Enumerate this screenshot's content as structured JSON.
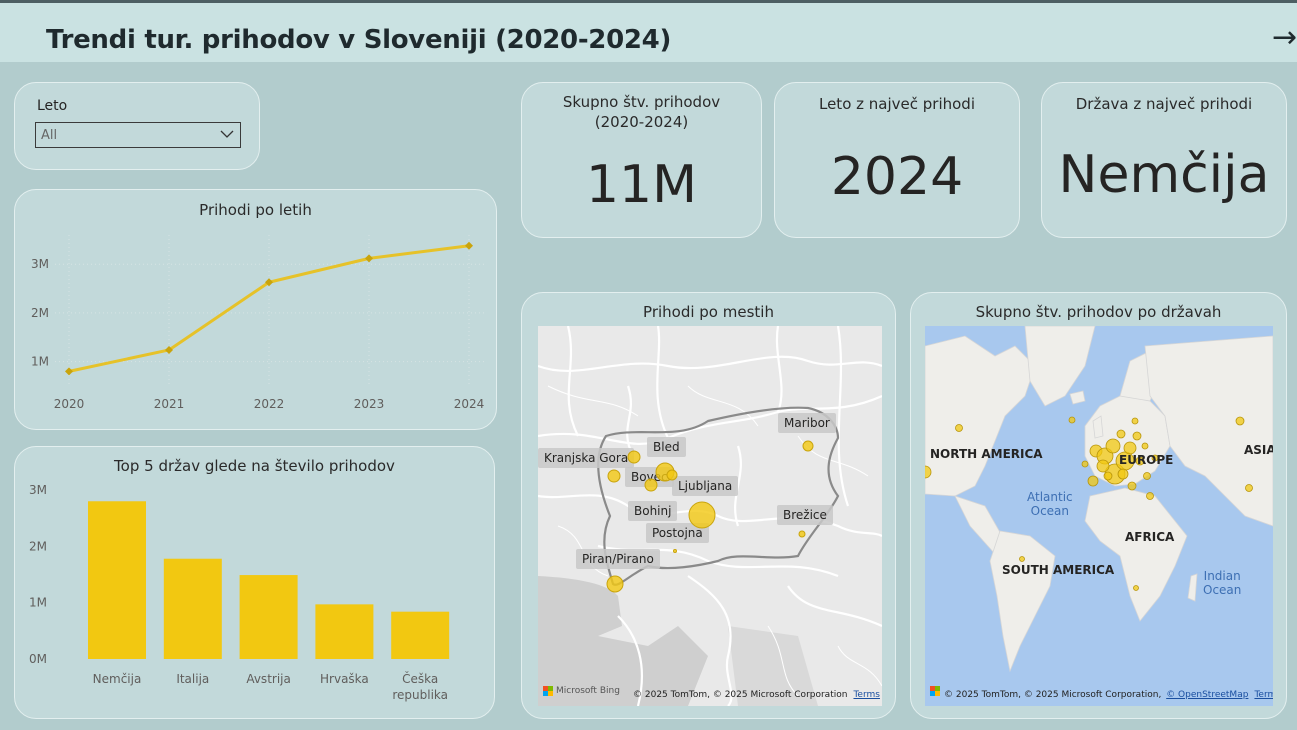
{
  "header": {
    "title": "Trendi tur. prihodov v Sloveniji (2020-2024)",
    "nav_icon": "arrow-right-icon"
  },
  "slicer": {
    "label": "Leto",
    "value": "All"
  },
  "kpis": [
    {
      "title": "Skupno štv. prihodov\n(2020-2024)",
      "value": "11M"
    },
    {
      "title": "Leto z največ prihodi",
      "value": "2024"
    },
    {
      "title": "Država z največ prihodi",
      "value": "Nemčija"
    }
  ],
  "line_card": {
    "title": "Prihodi po letih",
    "y_ticks": [
      "1M",
      "2M",
      "3M"
    ]
  },
  "bar_card": {
    "title": "Top 5 držav glede na število prihodov",
    "y_ticks": [
      "0M",
      "1M",
      "2M",
      "3M"
    ],
    "last_label_line2": "republika"
  },
  "chart_data": [
    {
      "type": "line",
      "title": "Prihodi po letih",
      "categories": [
        "2020",
        "2021",
        "2022",
        "2023",
        "2024"
      ],
      "values": [
        0.8,
        1.24,
        2.63,
        3.12,
        3.38
      ],
      "unit": "M",
      "ylim": [
        0.5,
        3.6
      ],
      "grid": true,
      "color": "#e6c229"
    },
    {
      "type": "bar",
      "title": "Top 5 držav glede na število prihodov",
      "categories": [
        "Nemčija",
        "Italija",
        "Avstrija",
        "Hrvaška",
        "Češka republika"
      ],
      "values": [
        2.8,
        1.78,
        1.49,
        0.97,
        0.84
      ],
      "unit": "M",
      "ylim": [
        0,
        3
      ],
      "color": "#f2c811"
    }
  ],
  "city_map": {
    "title": "Prihodi po mestih",
    "cities": [
      "Maribor",
      "Bled",
      "Kranjska Gora",
      "Bovec",
      "Ljubljana",
      "Bohinj",
      "Brežice",
      "Postojna",
      "Piran/Pirano"
    ],
    "logo": "Microsoft Bing",
    "credits": "© 2025 TomTom, © 2025 Microsoft Corporation",
    "terms": "Terms"
  },
  "world_map": {
    "title": "Skupno štv. prihodov po državah",
    "regions": [
      "NORTH AMERICA",
      "EUROPE",
      "ASIA",
      "AFRICA",
      "SOUTH AMERICA"
    ],
    "oceans": [
      "Atlantic\nOcean",
      "Indian\nOcean"
    ],
    "credits": "© 2025 TomTom, © 2025 Microsoft Corporation,",
    "osm": "© OpenStreetMap",
    "terms": "Terms"
  },
  "colors": {
    "accent": "#f2c811",
    "background": "#b2cccd",
    "card": "#c2d9da",
    "header": "#cae2e2"
  }
}
